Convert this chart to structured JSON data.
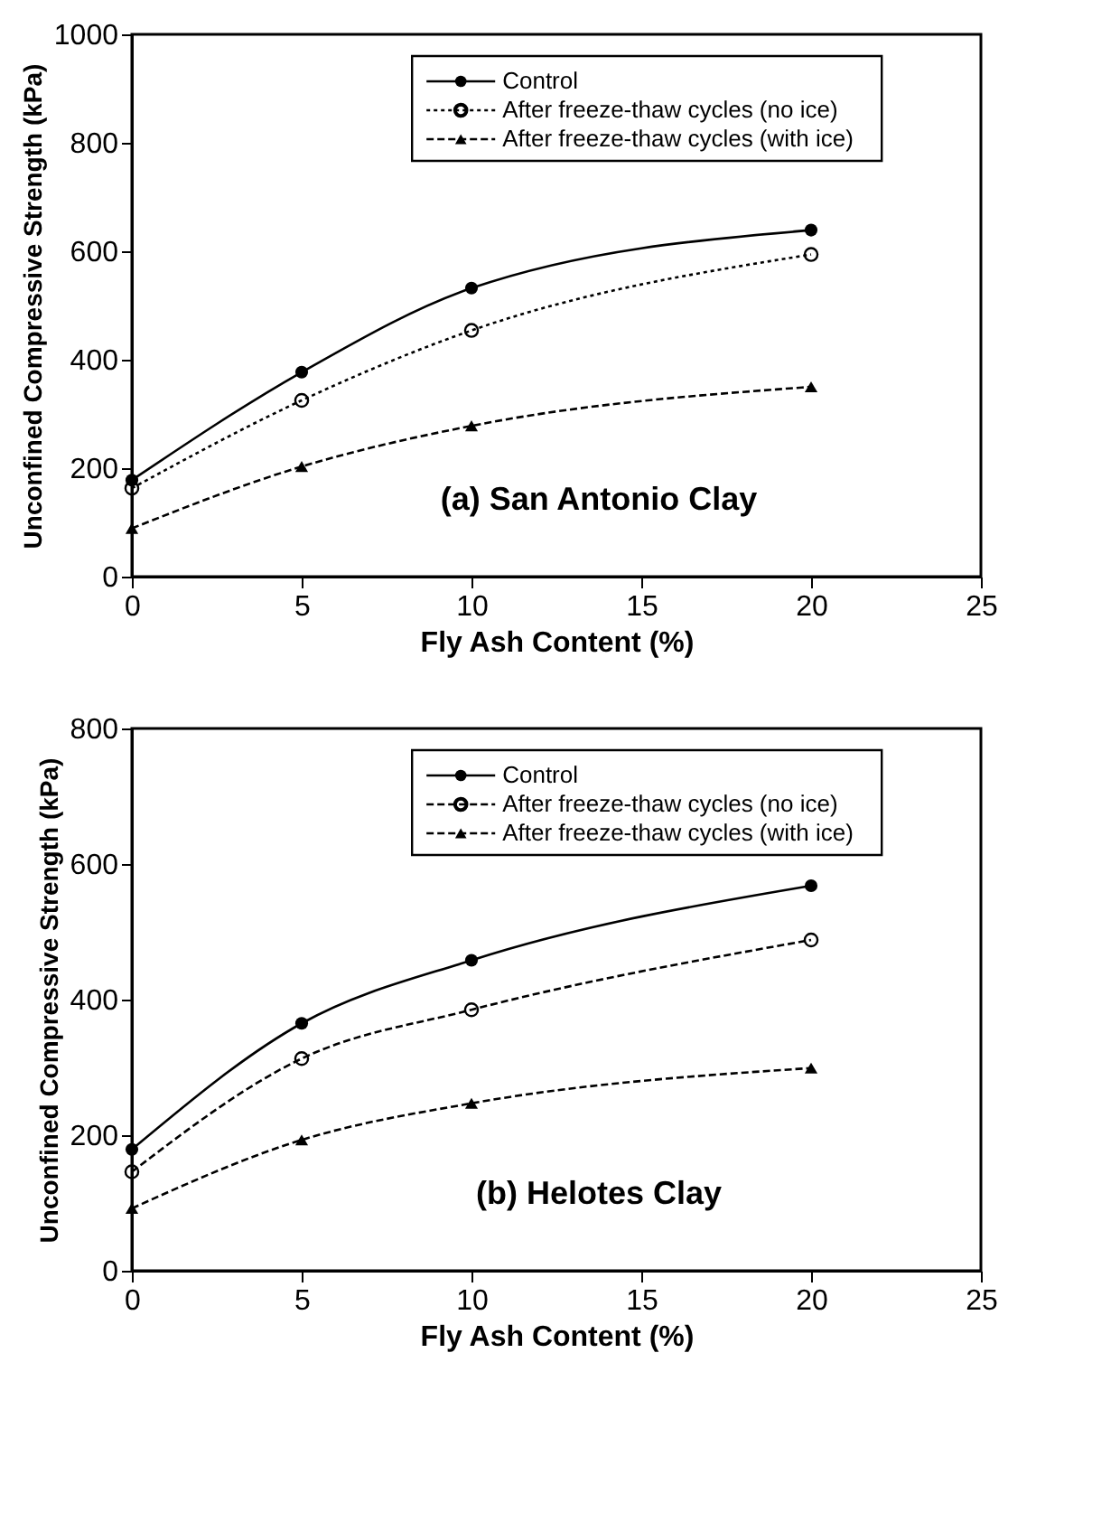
{
  "chart_data": [
    {
      "type": "line",
      "xlabel": "Fly Ash Content (%)",
      "ylabel": "Unconfined Compressive Strength (kPa)",
      "annotations": [
        "(a) San Antonio Clay"
      ],
      "x": [
        0,
        5,
        10,
        20
      ],
      "xlim": [
        0,
        25
      ],
      "xticks": [
        0,
        5,
        10,
        15,
        20,
        25
      ],
      "ylim": [
        0,
        1000
      ],
      "yticks": [
        0,
        200,
        400,
        600,
        800,
        1000
      ],
      "grid": false,
      "legend": "top",
      "series": [
        {
          "name": "Control",
          "color": "#000000",
          "marker": "circle",
          "line_style": "solid",
          "values": [
            178,
            377,
            532,
            639
          ]
        },
        {
          "name": "After freeze-thaw cycles (no ice)",
          "color": "#000000",
          "marker": "circle",
          "line_style": "dotted",
          "values": [
            163,
            325,
            454,
            594
          ]
        },
        {
          "name": "After freeze-thaw cycles (with ice)",
          "color": "#000000",
          "marker": "triangle",
          "line_style": "dashed",
          "values": [
            89,
            203,
            278,
            350
          ]
        }
      ]
    },
    {
      "type": "line",
      "xlabel": "Fly Ash Content (%)",
      "ylabel": "Unconfined Compressive Strength (kPa)",
      "annotations": [
        "(b) Helotes Clay"
      ],
      "x": [
        0,
        5,
        10,
        20
      ],
      "xlim": [
        0,
        25
      ],
      "xticks": [
        0,
        5,
        10,
        15,
        20,
        25
      ],
      "ylim": [
        0,
        800
      ],
      "yticks": [
        0,
        200,
        400,
        600,
        800
      ],
      "grid": false,
      "legend": "top",
      "series": [
        {
          "name": "Control",
          "color": "#000000",
          "marker": "circle",
          "line_style": "solid",
          "values": [
            179,
            365,
            458,
            568
          ]
        },
        {
          "name": "After freeze-thaw cycles (no ice)",
          "color": "#000000",
          "marker": "circle",
          "line_style": "dashed",
          "values": [
            146,
            313,
            385,
            488
          ]
        },
        {
          "name": "After freeze-thaw cycles (with ice)",
          "color": "#000000",
          "marker": "triangle",
          "line_style": "dashed",
          "values": [
            92,
            193,
            247,
            299
          ]
        }
      ]
    }
  ]
}
